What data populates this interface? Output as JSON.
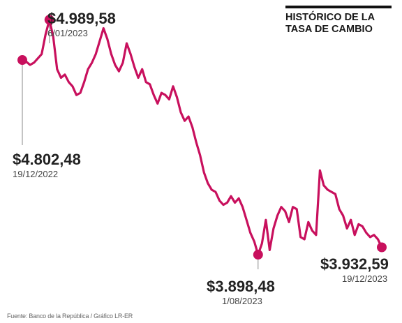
{
  "title": {
    "line1": "HISTÓRICO DE LA",
    "line2": "TASA DE CAMBIO"
  },
  "source": "Fuente: Banco de la República / Gráfico LR-ER",
  "colors": {
    "line": "#c8105d",
    "text": "#222222",
    "subtext": "#444444"
  },
  "chart_data": {
    "type": "line",
    "title": "HISTÓRICO DE LA TASA DE CAMBIO",
    "xlabel": "",
    "ylabel": "",
    "grid": false,
    "xlim": [
      "19/12/2022",
      "19/12/2023"
    ],
    "ylim": [
      3850,
      5010
    ],
    "series": [
      {
        "values": [
          4802.48,
          4795,
          4780,
          4790,
          4810,
          4830,
          4920,
          4989.58,
          4910,
          4760,
          4720,
          4735,
          4700,
          4680,
          4640,
          4650,
          4700,
          4760,
          4790,
          4830,
          4890,
          4950,
          4900,
          4830,
          4780,
          4750,
          4790,
          4880,
          4830,
          4770,
          4720,
          4760,
          4700,
          4690,
          4640,
          4600,
          4650,
          4640,
          4620,
          4680,
          4630,
          4560,
          4520,
          4540,
          4490,
          4420,
          4360,
          4280,
          4230,
          4200,
          4190,
          4150,
          4130,
          4140,
          4170,
          4140,
          4160,
          4120,
          4060,
          4000,
          3960,
          3898.48,
          3950,
          4060,
          3920,
          4020,
          4080,
          4120,
          4100,
          4050,
          4120,
          4110,
          3980,
          3970,
          4050,
          4010,
          3990,
          4290,
          4220,
          4200,
          4190,
          4180,
          4110,
          4080,
          4020,
          4060,
          3990,
          4040,
          4030,
          4000,
          3980,
          3990,
          3970,
          3932.59
        ]
      }
    ],
    "points": [
      {
        "label": "$4.802,48",
        "date": "19/12/2022",
        "value": 4802.48,
        "index": 0
      },
      {
        "label": "$4.989,58",
        "date": "6/01/2023",
        "value": 4989.58,
        "index": 7
      },
      {
        "label": "$3.898,48",
        "date": "1/08/2023",
        "value": 3898.48,
        "index": 61
      },
      {
        "label": "$3.932,59",
        "date": "19/12/2023",
        "value": 3932.59,
        "index": 93
      }
    ]
  }
}
